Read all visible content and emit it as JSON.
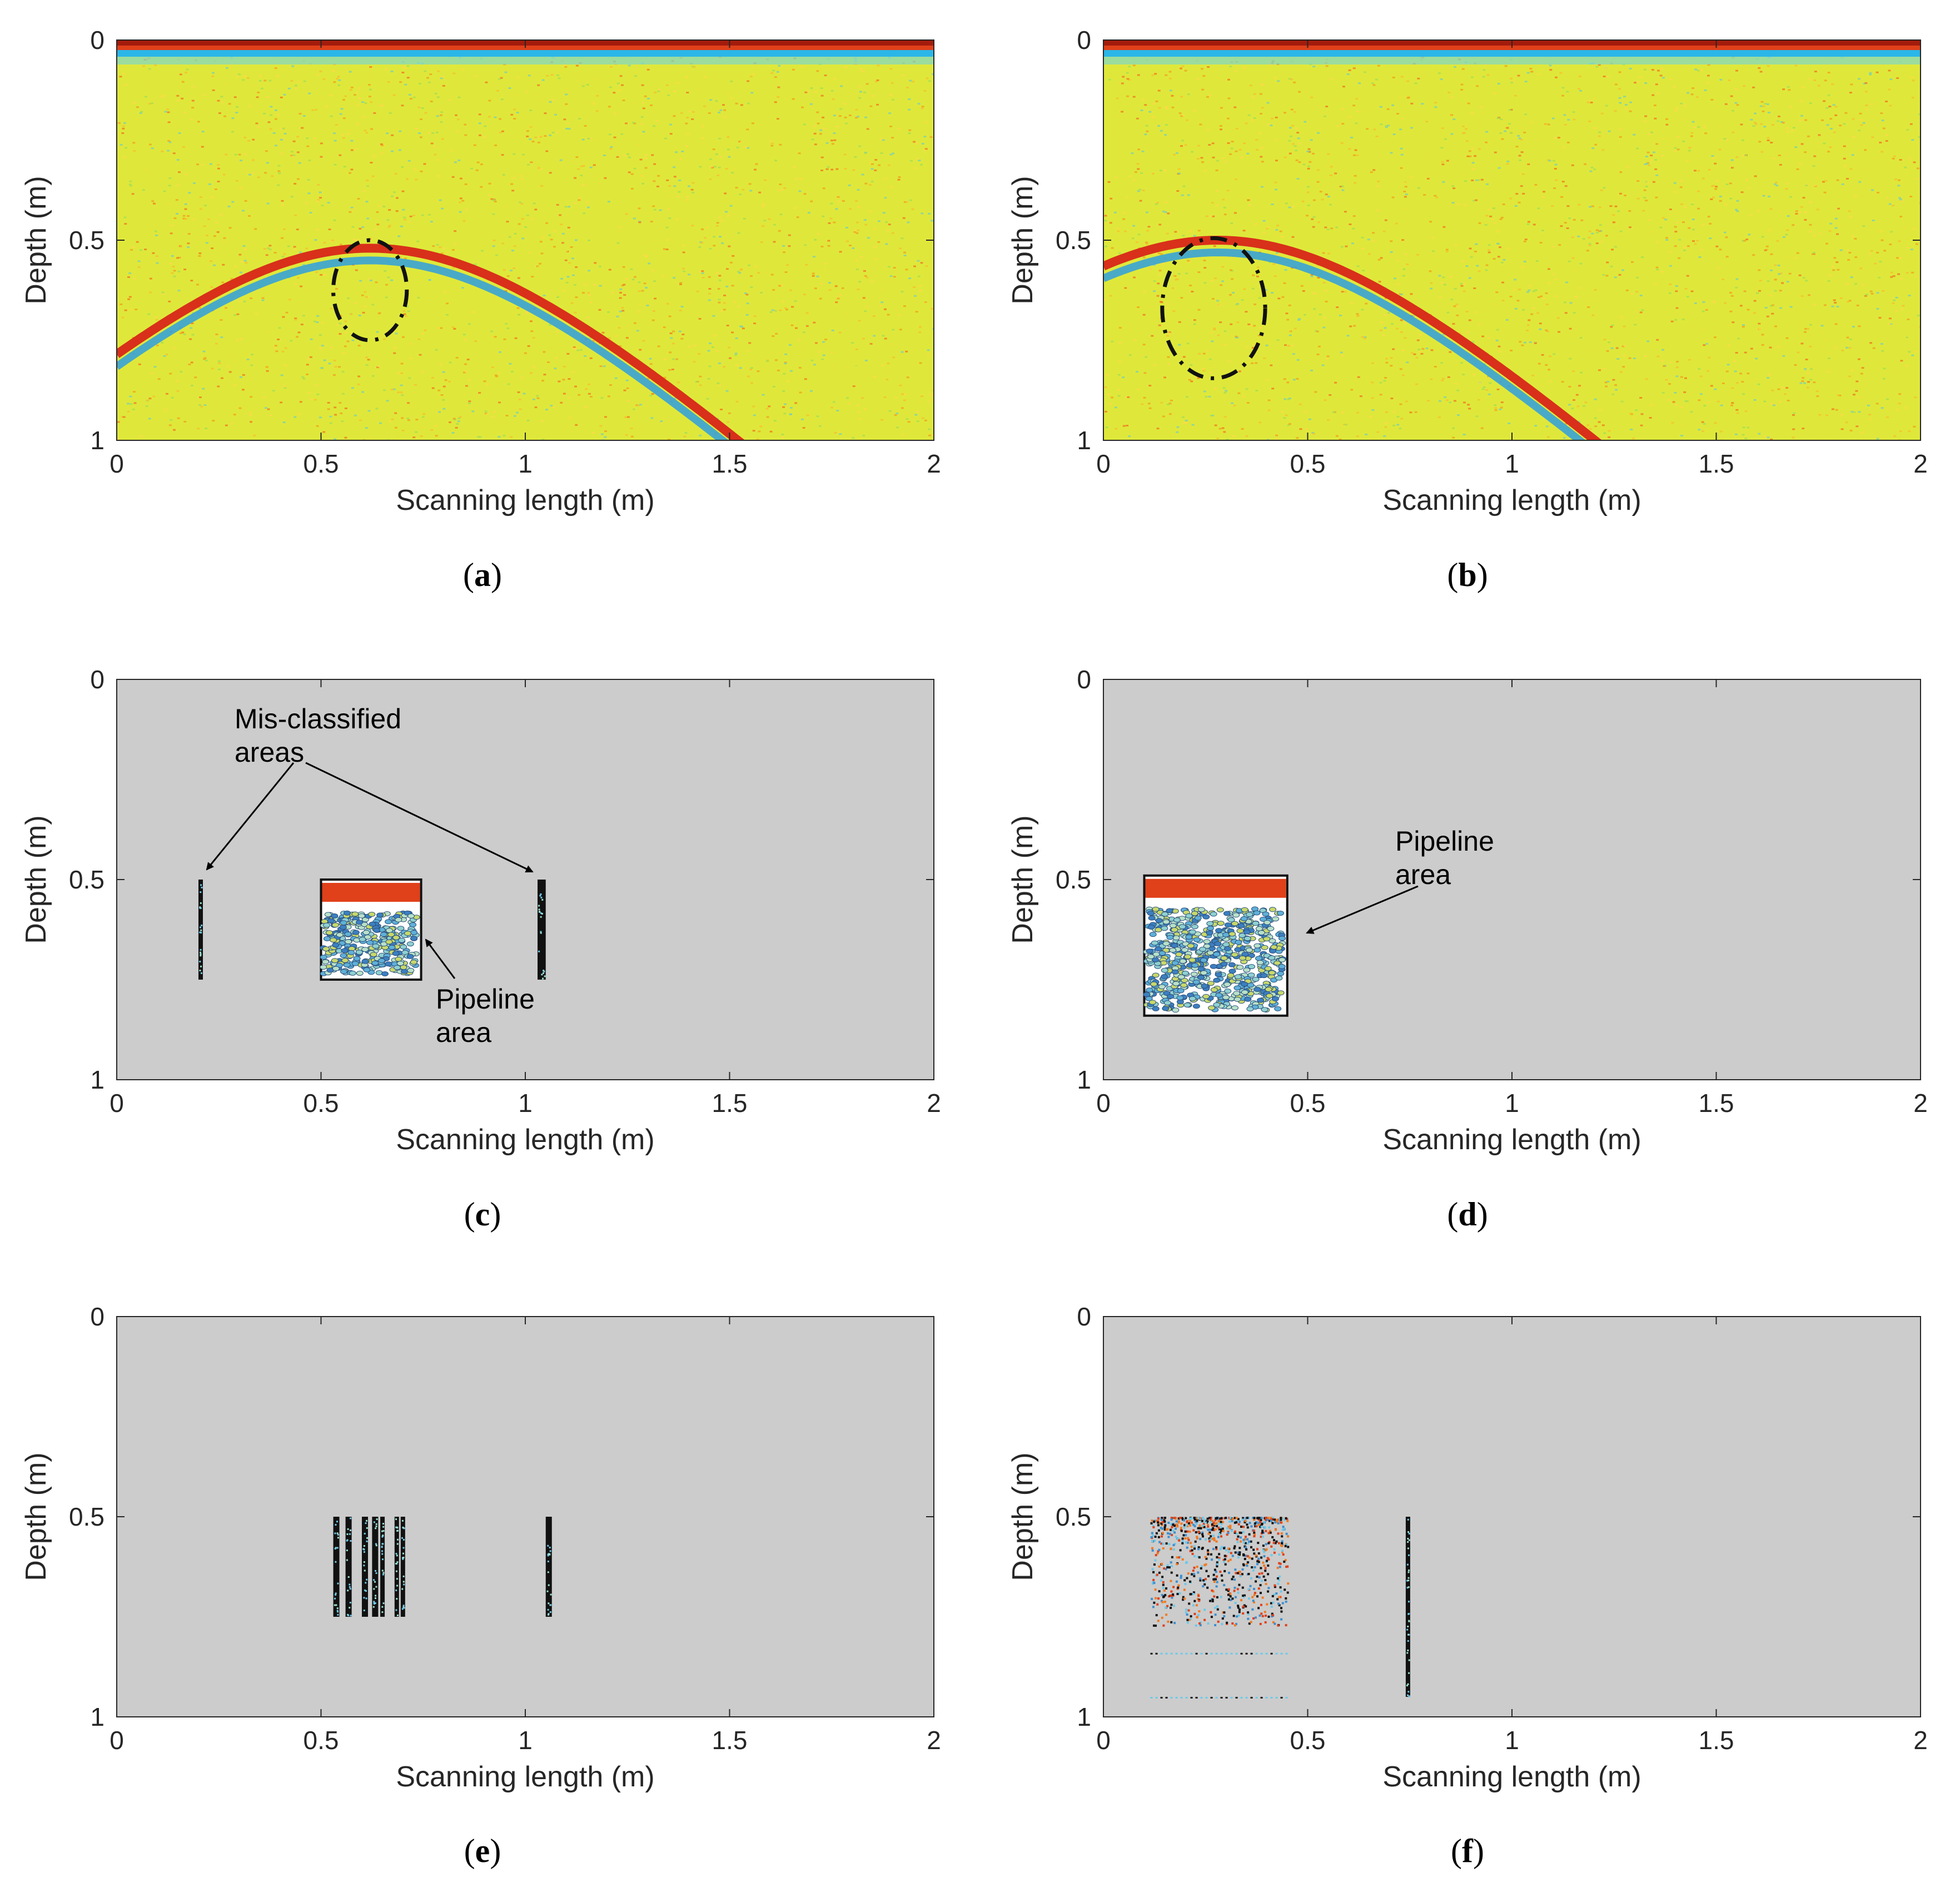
{
  "chart_data": [
    {
      "panel": "a",
      "type": "heatmap",
      "caption_letter": "a",
      "xlabel": "Scanning length (m)",
      "ylabel": "Depth (m)",
      "xlim": [
        0,
        2
      ],
      "ylim": [
        0,
        1
      ],
      "y_reversed": true,
      "xticks": [
        "0",
        "0.5",
        "1",
        "1.5",
        "2"
      ],
      "yticks": [
        "0",
        "0.5",
        "1"
      ],
      "background": "radargram",
      "hyperbola": {
        "apex_x": 0.62,
        "apex_depth": 0.52,
        "spread": 0.9
      },
      "circle": {
        "cx": 0.62,
        "cy": 0.625,
        "r": 0.125
      },
      "annotations": []
    },
    {
      "panel": "b",
      "type": "heatmap",
      "caption_letter": "b",
      "xlabel": "Scanning length (m)",
      "ylabel": "Depth (m)",
      "xlim": [
        0,
        2
      ],
      "ylim": [
        0,
        1
      ],
      "y_reversed": true,
      "xticks": [
        "0",
        "0.5",
        "1",
        "1.5",
        "2"
      ],
      "yticks": [
        "0",
        "0.5",
        "1"
      ],
      "background": "radargram",
      "hyperbola": {
        "apex_x": 0.28,
        "apex_depth": 0.5,
        "spread": 0.88
      },
      "circle": {
        "cx": 0.27,
        "cy": 0.67,
        "r": 0.175
      },
      "annotations": []
    },
    {
      "panel": "c",
      "type": "heatmap",
      "caption_letter": "c",
      "xlabel": "Scanning length (m)",
      "ylabel": "Depth (m)",
      "xlim": [
        0,
        2
      ],
      "ylim": [
        0,
        1
      ],
      "y_reversed": true,
      "xticks": [
        "0",
        "0.5",
        "1",
        "1.5",
        "2"
      ],
      "yticks": [
        "0",
        "0.5",
        "1"
      ],
      "background": "gray",
      "regions": [
        {
          "kind": "strip",
          "x0": 0.2,
          "x1": 0.21,
          "y0": 0.5,
          "y1": 0.75
        },
        {
          "kind": "box",
          "x0": 0.5,
          "x1": 0.745,
          "y0": 0.5,
          "y1": 0.75
        },
        {
          "kind": "strip",
          "x0": 1.03,
          "x1": 1.05,
          "y0": 0.5,
          "y1": 0.75
        }
      ],
      "annotations": [
        {
          "text": [
            "Mis-classified",
            "areas"
          ]
        },
        {
          "text": [
            "Pipeline",
            "area"
          ]
        }
      ]
    },
    {
      "panel": "d",
      "type": "heatmap",
      "caption_letter": "d",
      "xlabel": "Scanning length (m)",
      "ylabel": "Depth (m)",
      "xlim": [
        0,
        2
      ],
      "ylim": [
        0,
        1
      ],
      "y_reversed": true,
      "xticks": [
        "0",
        "0.5",
        "1",
        "1.5",
        "2"
      ],
      "yticks": [
        "0",
        "0.5",
        "1"
      ],
      "background": "gray",
      "regions": [
        {
          "kind": "box",
          "x0": 0.1,
          "x1": 0.45,
          "y0": 0.49,
          "y1": 0.84
        }
      ],
      "annotations": [
        {
          "text": [
            "Pipeline",
            "area"
          ]
        }
      ]
    },
    {
      "panel": "e",
      "type": "heatmap",
      "caption_letter": "e",
      "xlabel": "Scanning length (m)",
      "ylabel": "Depth (m)",
      "xlim": [
        0,
        2
      ],
      "ylim": [
        0,
        1
      ],
      "y_reversed": true,
      "xticks": [
        "0",
        "0.5",
        "1",
        "1.5",
        "2"
      ],
      "yticks": [
        "0",
        "0.5",
        "1"
      ],
      "background": "gray",
      "regions": [
        {
          "kind": "strip",
          "x0": 0.53,
          "x1": 0.545,
          "y0": 0.5,
          "y1": 0.75
        },
        {
          "kind": "strip",
          "x0": 0.56,
          "x1": 0.575,
          "y0": 0.5,
          "y1": 0.75
        },
        {
          "kind": "strip",
          "x0": 0.6,
          "x1": 0.615,
          "y0": 0.5,
          "y1": 0.75
        },
        {
          "kind": "strip",
          "x0": 0.625,
          "x1": 0.64,
          "y0": 0.5,
          "y1": 0.75
        },
        {
          "kind": "strip",
          "x0": 0.645,
          "x1": 0.655,
          "y0": 0.5,
          "y1": 0.75
        },
        {
          "kind": "strip",
          "x0": 0.68,
          "x1": 0.69,
          "y0": 0.5,
          "y1": 0.75
        },
        {
          "kind": "strip",
          "x0": 0.695,
          "x1": 0.705,
          "y0": 0.5,
          "y1": 0.75
        },
        {
          "kind": "strip",
          "x0": 1.05,
          "x1": 1.065,
          "y0": 0.5,
          "y1": 0.75
        }
      ],
      "annotations": []
    },
    {
      "panel": "f",
      "type": "heatmap",
      "caption_letter": "f",
      "xlabel": "Scanning length (m)",
      "ylabel": "Depth (m)",
      "xlim": [
        0,
        2
      ],
      "ylim": [
        0,
        1
      ],
      "y_reversed": true,
      "xticks": [
        "0",
        "0.5",
        "1",
        "1.5",
        "2"
      ],
      "yticks": [
        "0",
        "0.5",
        "1"
      ],
      "background": "gray",
      "regions": [
        {
          "kind": "scatter",
          "x0": 0.115,
          "x1": 0.45,
          "y0": 0.5,
          "y1": 0.95
        },
        {
          "kind": "strip",
          "x0": 0.74,
          "x1": 0.75,
          "y0": 0.5,
          "y1": 0.95
        }
      ],
      "annotations": []
    }
  ]
}
